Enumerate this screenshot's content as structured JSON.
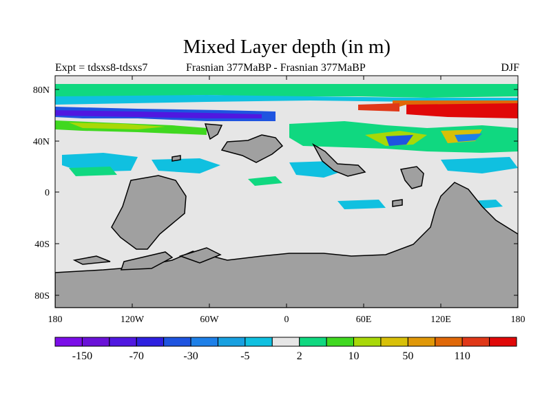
{
  "header": {
    "title": "Mixed Layer depth (in m)",
    "experiment": "Expt = tdsxs8-tdsxs7",
    "comparison": "Frasnian 377MaBP - Frasnian 377MaBP",
    "season": "DJF"
  },
  "map": {
    "lat_ticks": [
      "80N",
      "40N",
      "0",
      "40S",
      "80S"
    ],
    "lon_ticks": [
      "180",
      "120W",
      "60W",
      "0",
      "60E",
      "120E",
      "180"
    ],
    "ocean_color": "#e6e6e6",
    "land_color": "#a0a0a0",
    "coast_color": "#000000"
  },
  "colorbar": {
    "colors": [
      "#7b0ee8",
      "#6a12d8",
      "#5018e0",
      "#2e20e0",
      "#1e54e0",
      "#1e80e8",
      "#18a0e0",
      "#10c0e0",
      "#e6e6e6",
      "#10d880",
      "#40d820",
      "#a8d808",
      "#d8c008",
      "#e09808",
      "#e06808",
      "#e03818",
      "#e00808"
    ],
    "labels": [
      "-150",
      "-70",
      "-30",
      "-5",
      "2",
      "10",
      "50",
      "110"
    ]
  }
}
